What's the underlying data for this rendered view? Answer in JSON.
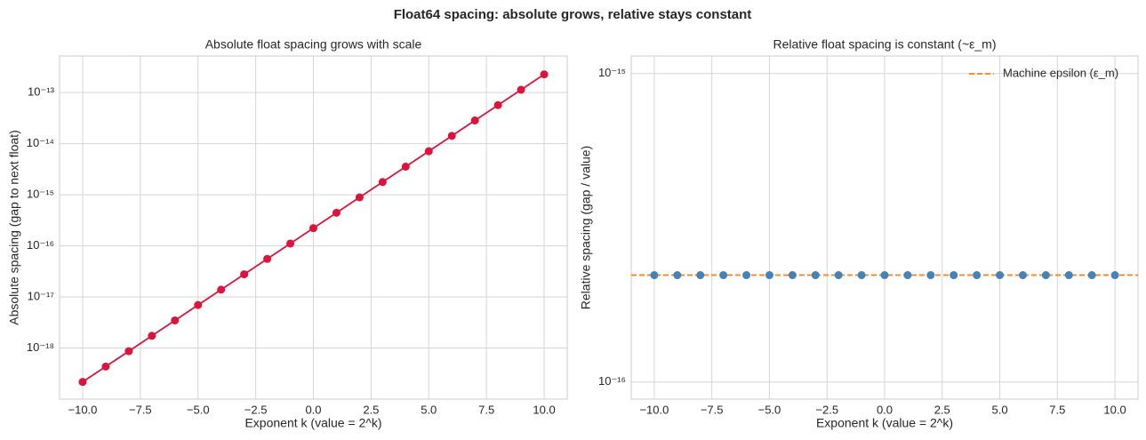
{
  "title": "Float64 spacing: absolute grows, relative stays constant",
  "chart_data": [
    {
      "type": "line",
      "title": "Absolute float spacing grows with scale",
      "xlabel": "Exponent k  (value = 2^k)",
      "ylabel": "Absolute spacing (gap to next float)",
      "x": [
        -10,
        -9,
        -8,
        -7,
        -6,
        -5,
        -4,
        -3,
        -2,
        -1,
        0,
        1,
        2,
        3,
        4,
        5,
        6,
        7,
        8,
        9,
        10
      ],
      "series": [
        {
          "color": "#dc143c",
          "values": [
            2.168404344971009e-19,
            4.336808689942018e-19,
            8.673617379884035e-19,
            1.734723475976807e-18,
            3.469446951953614e-18,
            6.938893903907228e-18,
            1.3877787807814457e-17,
            2.7755575615628914e-17,
            5.551115123125783e-17,
            1.1102230246251565e-16,
            2.220446049250313e-16,
            4.440892098500626e-16,
            8.881784197001252e-16,
            1.7763568394002505e-15,
            3.552713678800501e-15,
            7.105427357601002e-15,
            1.4210854715202004e-14,
            2.842170943040401e-14,
            5.684341886080802e-14,
            1.1368683772161603e-13,
            2.2737367544323206e-13
          ]
        }
      ],
      "xlim": [
        -11,
        11
      ],
      "ylim": [
        1e-19,
        5.2e-13
      ],
      "yscale": "log",
      "grid": true,
      "xticks": [
        {
          "value": -10,
          "label": "−10.0"
        },
        {
          "value": -7.5,
          "label": "−7.5"
        },
        {
          "value": -5,
          "label": "−5.0"
        },
        {
          "value": -2.5,
          "label": "−2.5"
        },
        {
          "value": 0,
          "label": "0.0"
        },
        {
          "value": 2.5,
          "label": "2.5"
        },
        {
          "value": 5,
          "label": "5.0"
        },
        {
          "value": 7.5,
          "label": "7.5"
        },
        {
          "value": 10,
          "label": "10.0"
        }
      ],
      "yticks": [
        {
          "value": 1e-18,
          "label": "10⁻¹⁸"
        },
        {
          "value": 1e-17,
          "label": "10⁻¹⁷"
        },
        {
          "value": 1e-16,
          "label": "10⁻¹⁶"
        },
        {
          "value": 1e-15,
          "label": "10⁻¹⁵"
        },
        {
          "value": 1e-14,
          "label": "10⁻¹⁴"
        },
        {
          "value": 1e-13,
          "label": "10⁻¹³"
        }
      ]
    },
    {
      "type": "scatter",
      "title": "Relative float spacing is constant (~ε_m)",
      "xlabel": "Exponent k  (value = 2^k)",
      "ylabel": "Relative spacing (gap / value)",
      "x": [
        -10,
        -9,
        -8,
        -7,
        -6,
        -5,
        -4,
        -3,
        -2,
        -1,
        0,
        1,
        2,
        3,
        4,
        5,
        6,
        7,
        8,
        9,
        10
      ],
      "series": [
        {
          "color": "#4682b4",
          "values": [
            2.220446049250313e-16,
            2.220446049250313e-16,
            2.220446049250313e-16,
            2.220446049250313e-16,
            2.220446049250313e-16,
            2.220446049250313e-16,
            2.220446049250313e-16,
            2.220446049250313e-16,
            2.220446049250313e-16,
            2.220446049250313e-16,
            2.220446049250313e-16,
            2.220446049250313e-16,
            2.220446049250313e-16,
            2.220446049250313e-16,
            2.220446049250313e-16,
            2.220446049250313e-16,
            2.220446049250313e-16,
            2.220446049250313e-16,
            2.220446049250313e-16,
            2.220446049250313e-16,
            2.220446049250313e-16
          ]
        }
      ],
      "reference_line": {
        "name": "Machine epsilon (ε_m)",
        "value": 2.220446049250313e-16,
        "color": "#ff7f0e"
      },
      "legend": "upper right",
      "xlim": [
        -11,
        11
      ],
      "ylim": [
        8.8e-17,
        1.14e-15
      ],
      "yscale": "log",
      "grid": true,
      "xticks": [
        {
          "value": -10,
          "label": "−10.0"
        },
        {
          "value": -7.5,
          "label": "−7.5"
        },
        {
          "value": -5,
          "label": "−5.0"
        },
        {
          "value": -2.5,
          "label": "−2.5"
        },
        {
          "value": 0,
          "label": "0.0"
        },
        {
          "value": 2.5,
          "label": "2.5"
        },
        {
          "value": 5,
          "label": "5.0"
        },
        {
          "value": 7.5,
          "label": "7.5"
        },
        {
          "value": 10,
          "label": "10.0"
        }
      ],
      "yticks": [
        {
          "value": 1e-16,
          "label": "10⁻¹⁶"
        },
        {
          "value": 1e-15,
          "label": "10⁻¹⁵"
        }
      ]
    }
  ]
}
